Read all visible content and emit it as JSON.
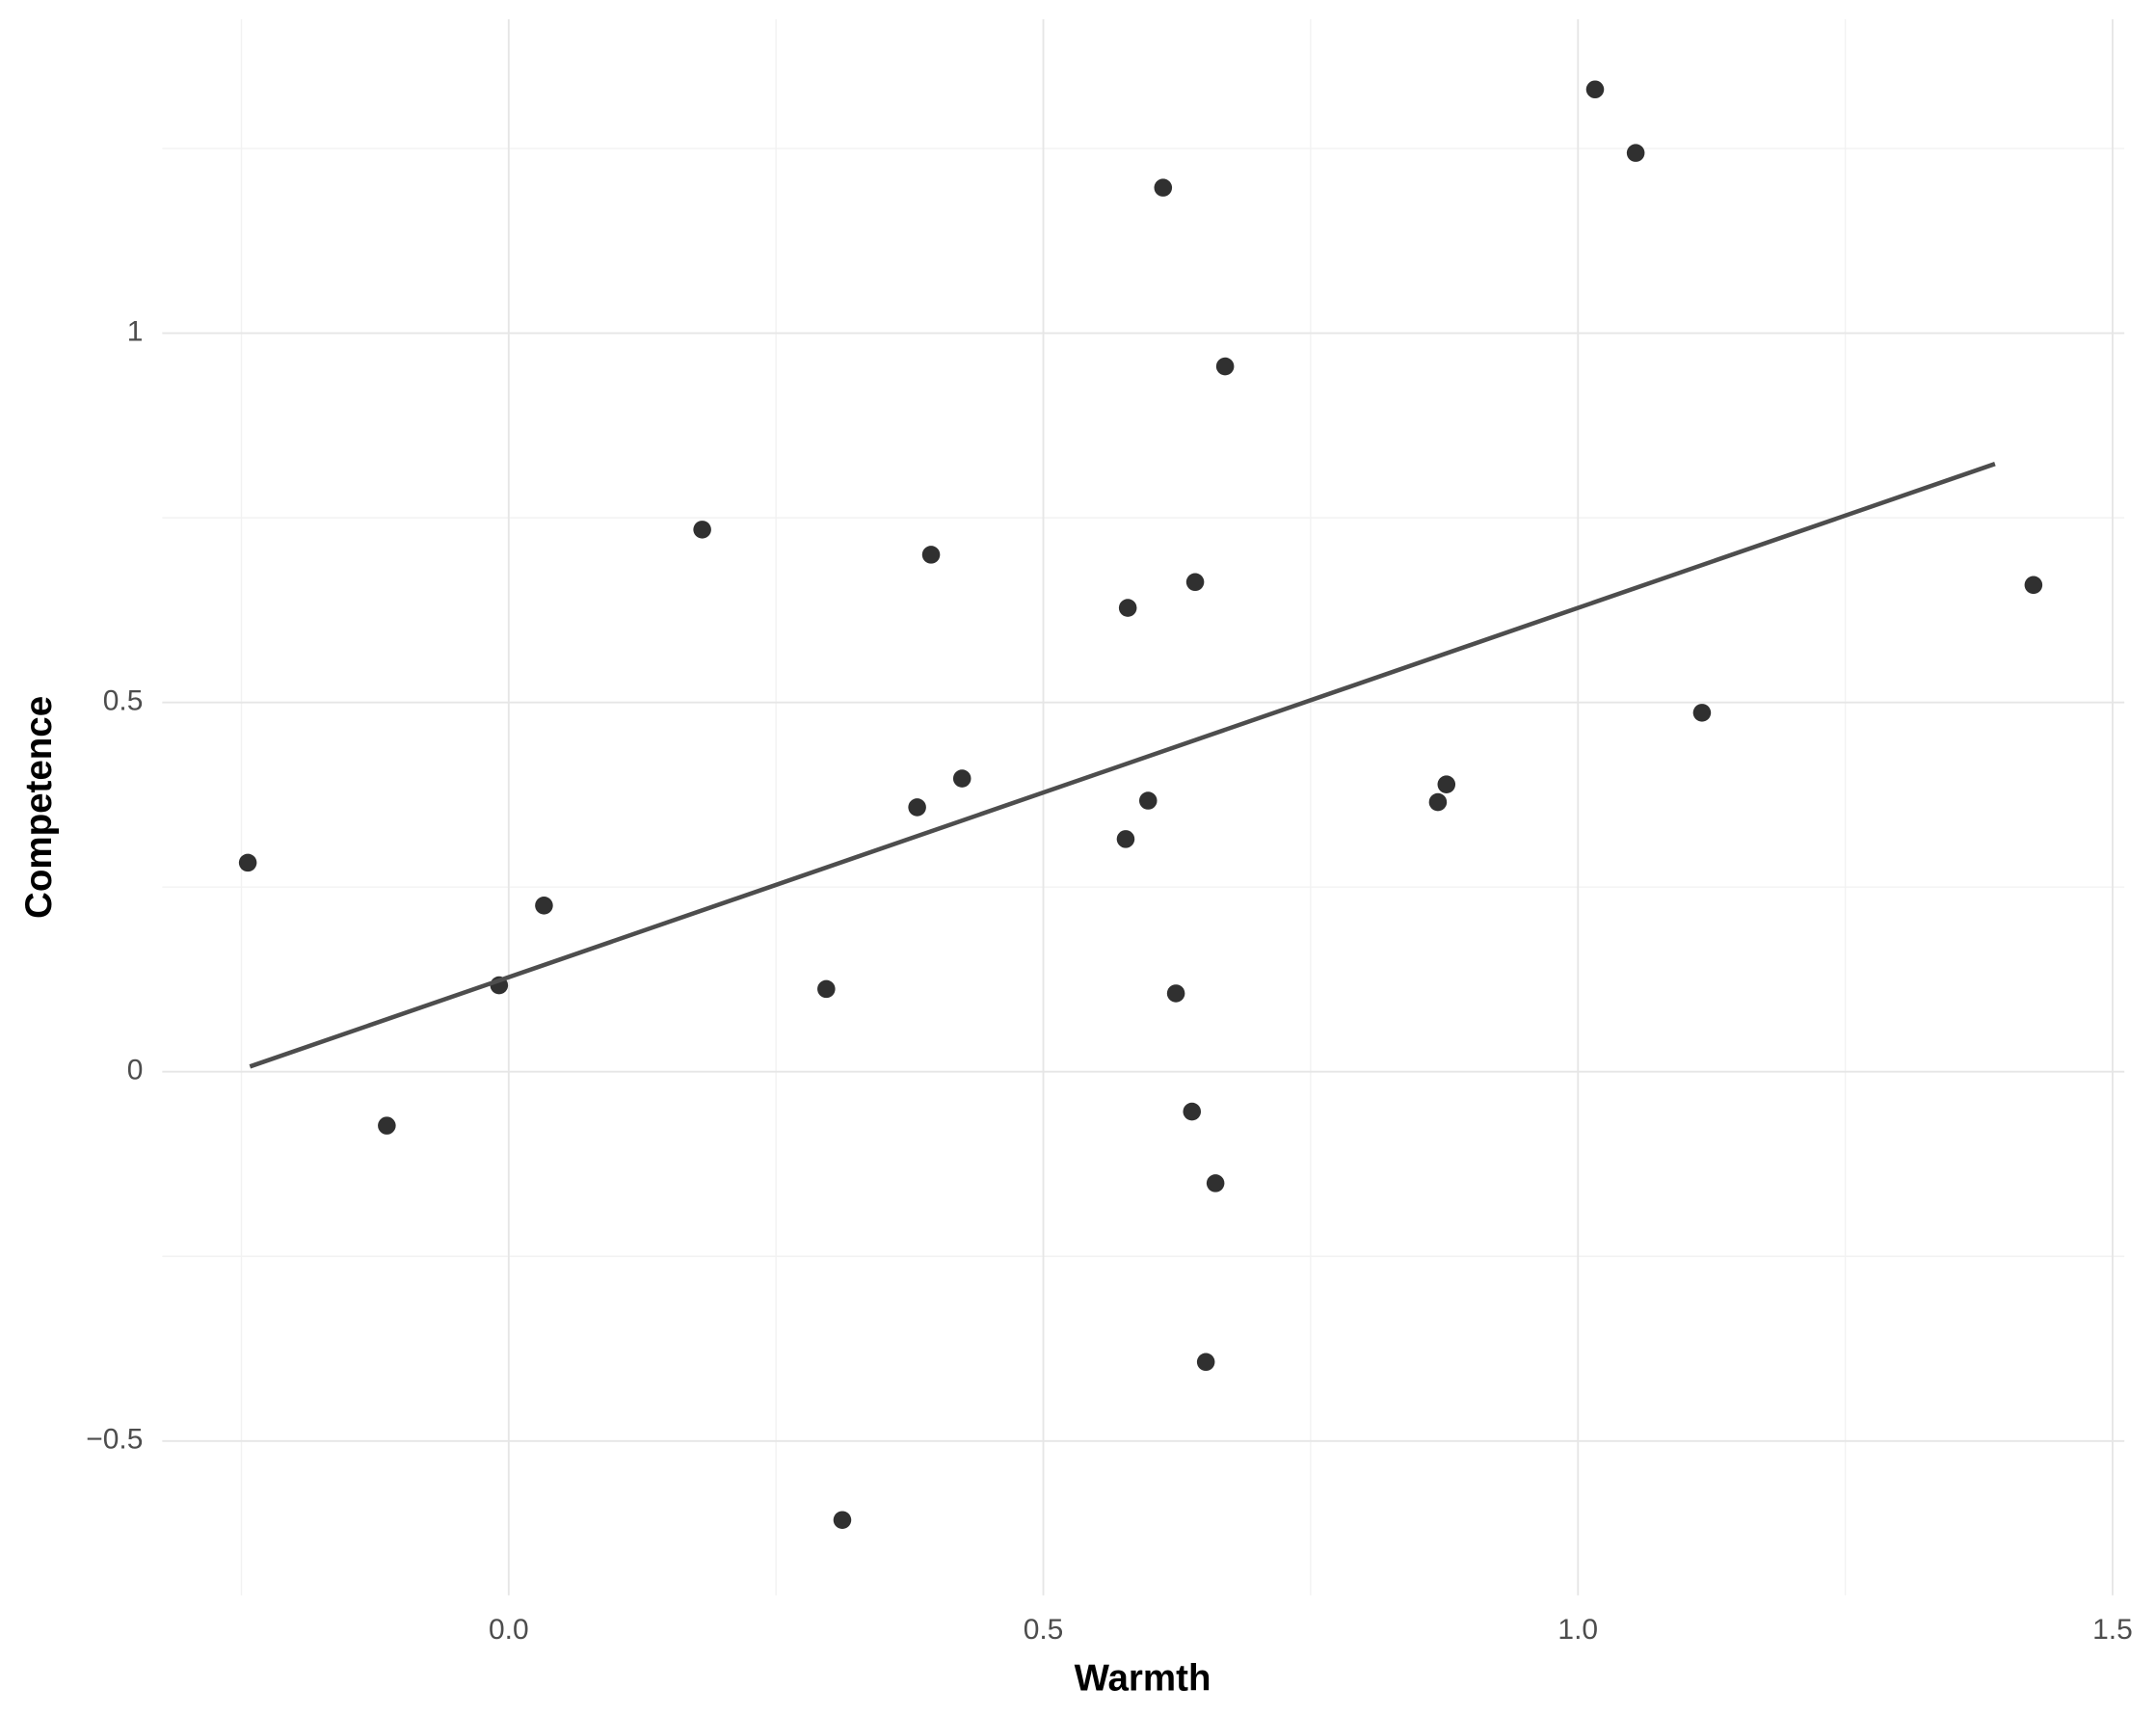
{
  "chart_data": {
    "type": "scatter",
    "x_label": "Warmth",
    "y_label": "Competence",
    "xlim": [
      -0.324,
      1.511
    ],
    "ylim": [
      -0.709,
      1.425
    ],
    "xticks": [
      {
        "value": 0,
        "label": "0.0"
      },
      0.5,
      {
        "value": 1,
        "label": "1.0"
      },
      1.5
    ],
    "yticks": [
      {
        "value": -0.5,
        "label": "−0.5"
      },
      0,
      0.5,
      1
    ],
    "x_minor_ticks": [
      -0.25,
      0.25,
      0.75,
      1.25
    ],
    "y_minor_ticks": [
      -0.25,
      0.25,
      0.75,
      1.25
    ],
    "grid": true,
    "series": [
      {
        "color": "#1a1a1a",
        "x": [
          -0.244,
          -0.114,
          -0.009,
          0.033,
          0.181,
          0.297,
          0.312,
          0.382,
          0.395,
          0.424,
          0.577,
          0.579,
          0.598,
          0.612,
          0.624,
          0.639,
          0.642,
          0.652,
          0.661,
          0.67,
          0.869,
          0.877,
          1.016,
          1.054,
          1.116,
          1.426
        ],
        "values": [
          0.283,
          -0.073,
          0.117,
          0.225,
          0.734,
          0.112,
          -0.607,
          0.358,
          0.7,
          0.397,
          0.315,
          0.628,
          0.367,
          1.197,
          0.106,
          -0.054,
          0.663,
          -0.393,
          -0.151,
          0.955,
          0.365,
          0.389,
          1.33,
          1.244,
          0.486,
          0.659
        ]
      }
    ],
    "trend_line": {
      "color": "#4d4d4d",
      "x": [
        -0.242,
        1.39
      ],
      "values": [
        0.007,
        0.823
      ]
    }
  }
}
